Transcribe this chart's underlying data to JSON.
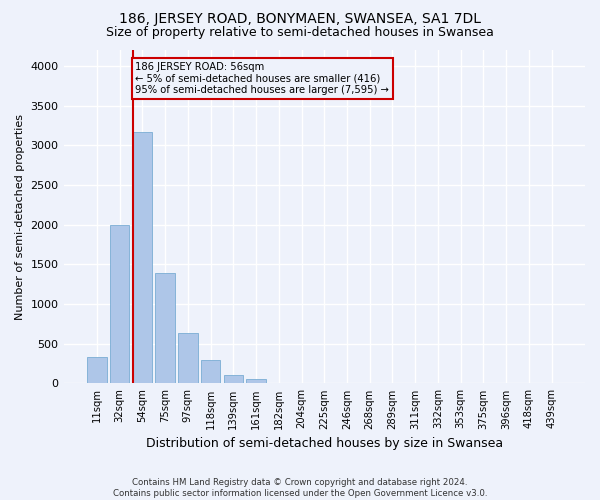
{
  "title": "186, JERSEY ROAD, BONYMAEN, SWANSEA, SA1 7DL",
  "subtitle": "Size of property relative to semi-detached houses in Swansea",
  "xlabel": "Distribution of semi-detached houses by size in Swansea",
  "ylabel": "Number of semi-detached properties",
  "bar_labels": [
    "11sqm",
    "32sqm",
    "54sqm",
    "75sqm",
    "97sqm",
    "118sqm",
    "139sqm",
    "161sqm",
    "182sqm",
    "204sqm",
    "225sqm",
    "246sqm",
    "268sqm",
    "289sqm",
    "311sqm",
    "332sqm",
    "353sqm",
    "375sqm",
    "396sqm",
    "418sqm",
    "439sqm"
  ],
  "bar_values": [
    330,
    2000,
    3170,
    1390,
    640,
    300,
    110,
    50,
    0,
    0,
    0,
    0,
    0,
    0,
    0,
    0,
    0,
    0,
    0,
    0,
    0
  ],
  "bar_color": "#aec6e8",
  "bar_edge_color": "#7aadd4",
  "property_line_label": "186 JERSEY ROAD: 56sqm",
  "annotation_line1": "← 5% of semi-detached houses are smaller (416)",
  "annotation_line2": "95% of semi-detached houses are larger (7,595) →",
  "annotation_box_color": "#cc0000",
  "ylim": [
    0,
    4200
  ],
  "yticks": [
    0,
    500,
    1000,
    1500,
    2000,
    2500,
    3000,
    3500,
    4000
  ],
  "footer": "Contains HM Land Registry data © Crown copyright and database right 2024.\nContains public sector information licensed under the Open Government Licence v3.0.",
  "bg_color": "#eef2fb",
  "grid_color": "#ffffff",
  "title_fontsize": 10,
  "subtitle_fontsize": 9,
  "bar_width": 0.85
}
